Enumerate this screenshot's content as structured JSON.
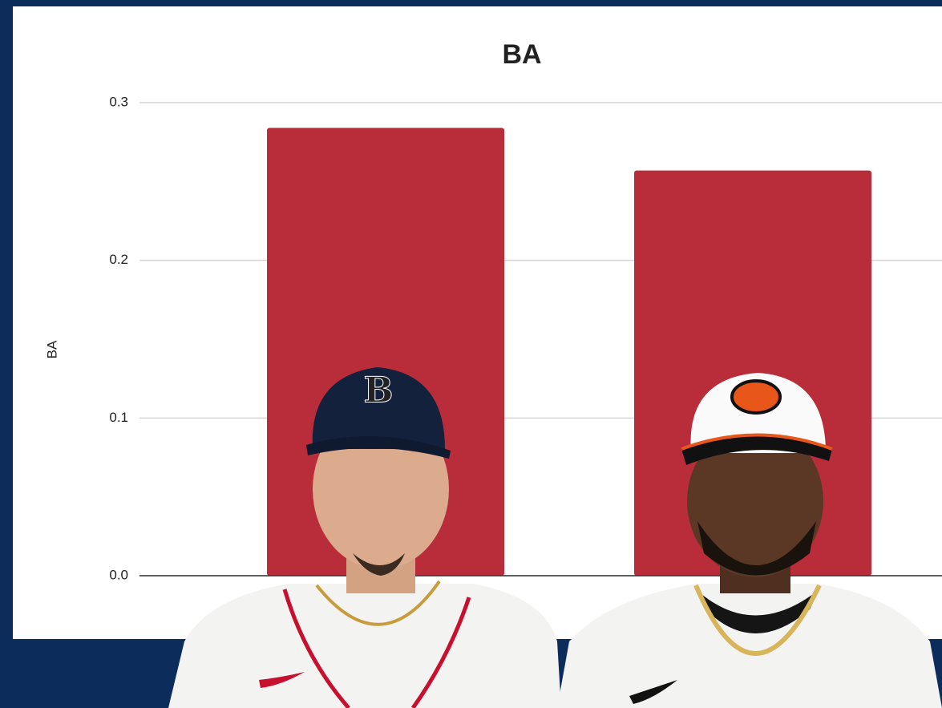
{
  "chart_data": {
    "type": "bar",
    "title": "BA",
    "y_label": "BA",
    "categories": [
      null,
      null
    ],
    "values": [
      0.284,
      0.257
    ],
    "color": "#b92d3a",
    "ylim": [
      0,
      0.3
    ],
    "yticks": [
      {
        "value": 0,
        "label": "0.0"
      },
      {
        "value": 0.1,
        "label": "0.1"
      },
      {
        "value": 0.2,
        "label": "0.2"
      },
      {
        "value": 0.3,
        "label": "0.3"
      }
    ],
    "grid": true
  }
}
